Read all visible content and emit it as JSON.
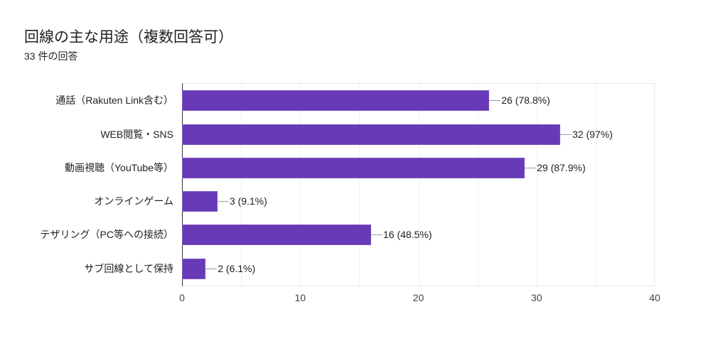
{
  "title": "回線の主な用途（複数回答可）",
  "subtitle": "33 件の回答",
  "colors": {
    "bar": "#673ab7"
  },
  "chart_data": {
    "type": "bar",
    "orientation": "horizontal",
    "title": "回線の主な用途（複数回答可）",
    "subtitle": "33 件の回答",
    "categories": [
      "通話（Rakuten Link含む）",
      "WEB閲覧・SNS",
      "動画視聴（YouTube等）",
      "オンラインゲーム",
      "テザリング（PC等への接続）",
      "サブ回線として保持"
    ],
    "values": [
      26,
      32,
      29,
      3,
      16,
      2
    ],
    "percents": [
      "78.8%",
      "97%",
      "87.9%",
      "9.1%",
      "48.5%",
      "6.1%"
    ],
    "data_labels": [
      "26 (78.8%)",
      "32 (97%)",
      "29 (87.9%)",
      "3 (9.1%)",
      "16 (48.5%)",
      "2 (6.1%)"
    ],
    "xlabel": "",
    "ylabel": "",
    "xlim": [
      0,
      40
    ],
    "x_ticks": [
      "0",
      "10",
      "20",
      "30",
      "40"
    ],
    "grid": true,
    "legend": "none"
  }
}
